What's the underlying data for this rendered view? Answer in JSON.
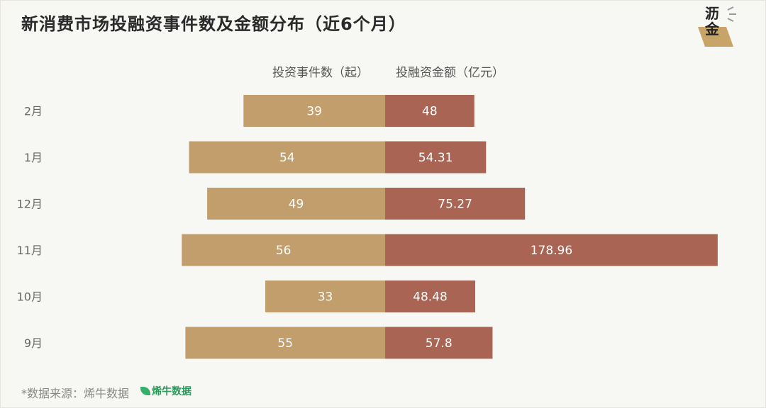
{
  "title": "新消费市场投融资事件数及金额分布（近6个月）",
  "logo": {
    "line1": "沥",
    "line2": "金",
    "colors": {
      "badge": "#c8a469"
    }
  },
  "legend": {
    "left": "投资事件数（起）",
    "right": "投融资金额（亿元）"
  },
  "source": {
    "text": "*数据来源：烯牛数据",
    "brand": "烯牛数据"
  },
  "chart_data": {
    "type": "bar",
    "orientation": "horizontal-diverging",
    "categories": [
      "2月",
      "1月",
      "12月",
      "11月",
      "10月",
      "9月"
    ],
    "series": [
      {
        "name": "投资事件数（起）",
        "values": [
          39,
          54,
          49,
          56,
          33,
          55
        ],
        "labels": [
          "39",
          "54",
          "49",
          "56",
          "33",
          "55"
        ],
        "color": "#c19e6c",
        "side": "left"
      },
      {
        "name": "投融资金额（亿元）",
        "values": [
          48,
          54.31,
          75.27,
          178.96,
          48.48,
          57.8
        ],
        "labels": [
          "48",
          "54.31",
          "75.27",
          "178.96",
          "48.48",
          "57.8"
        ],
        "color": "#aa6454",
        "side": "right"
      }
    ],
    "grid": false
  }
}
